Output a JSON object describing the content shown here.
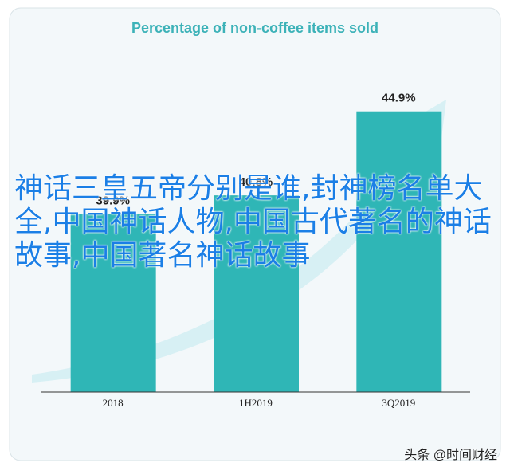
{
  "chart_data": {
    "type": "bar",
    "title": "Percentage of non-coffee items sold",
    "categories": [
      "2018",
      "1H2019",
      "3Q2019"
    ],
    "values": [
      39.9,
      40.8,
      44.9
    ],
    "value_labels": [
      "39.9%",
      "40.8%",
      "44.9%"
    ],
    "color": "#2fb6b6",
    "ylim": [
      31.2,
      48
    ]
  },
  "overlay_text": "神话三皇五帝分别是谁,封神榜名单大全,中国神话人物,中国古代著名的神话故事,中国著名神话故事",
  "watermark": "头条 @时间财经"
}
